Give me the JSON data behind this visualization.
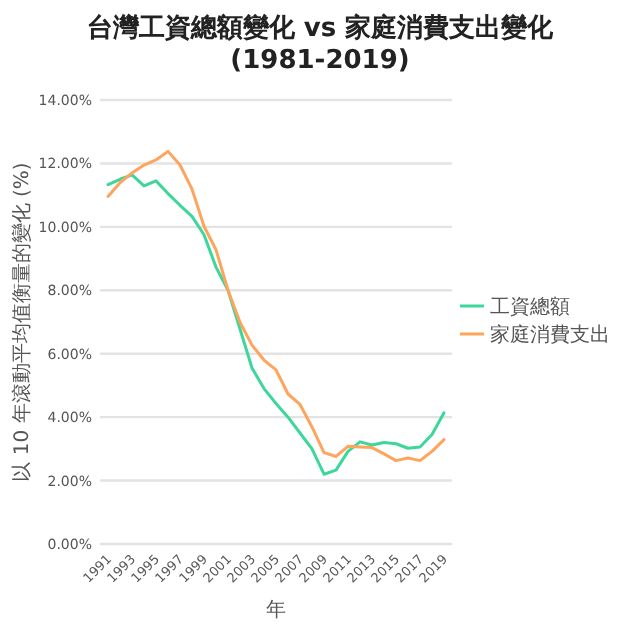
{
  "chart_data": {
    "type": "line",
    "title": "台灣工資總額變化 vs 家庭消費支出變化\n(1981-2019)",
    "xlabel": "年",
    "ylabel": "以 10 年滾動平均值衡量的變化 (%)",
    "categories": [
      "1991",
      null,
      "1993",
      null,
      "1995",
      null,
      "1997",
      null,
      "1999",
      null,
      "2001",
      null,
      "2003",
      null,
      "2005",
      null,
      "2007",
      null,
      "2009",
      null,
      "2011",
      null,
      "2013",
      null,
      "2015",
      null,
      "2017",
      null,
      "2019"
    ],
    "series": [
      {
        "name": "工資總額",
        "color": "#3dd69b",
        "values": [
          11.33,
          11.5,
          11.64,
          11.29,
          11.45,
          11.05,
          10.68,
          10.33,
          9.75,
          8.73,
          8.0,
          6.78,
          5.55,
          4.9,
          4.43,
          4.0,
          3.5,
          3.0,
          2.2,
          2.33,
          2.92,
          3.22,
          3.12,
          3.2,
          3.16,
          3.02,
          3.06,
          3.45,
          4.14
        ]
      },
      {
        "name": "家庭消費支出",
        "color": "#ffa45c",
        "values": [
          10.96,
          11.39,
          11.7,
          11.95,
          12.11,
          12.38,
          11.95,
          11.19,
          10.02,
          9.28,
          8.0,
          6.99,
          6.27,
          5.8,
          5.49,
          4.73,
          4.4,
          3.69,
          2.88,
          2.76,
          3.08,
          3.06,
          3.04,
          2.84,
          2.63,
          2.71,
          2.63,
          2.92,
          3.29
        ]
      }
    ],
    "ylim": [
      0,
      14
    ],
    "yticks": [
      {
        "value": 0,
        "label": "0.00%"
      },
      {
        "value": 2,
        "label": "2.00%"
      },
      {
        "value": 4,
        "label": "4.00%"
      },
      {
        "value": 6,
        "label": "6.00%"
      },
      {
        "value": 8,
        "label": "8.00%"
      },
      {
        "value": 10,
        "label": "10.00%"
      },
      {
        "value": 12,
        "label": "12.00%"
      },
      {
        "value": 14,
        "label": "14.00%"
      }
    ],
    "grid": "y",
    "legend": "right",
    "marker": "none",
    "line_style": "solid"
  }
}
